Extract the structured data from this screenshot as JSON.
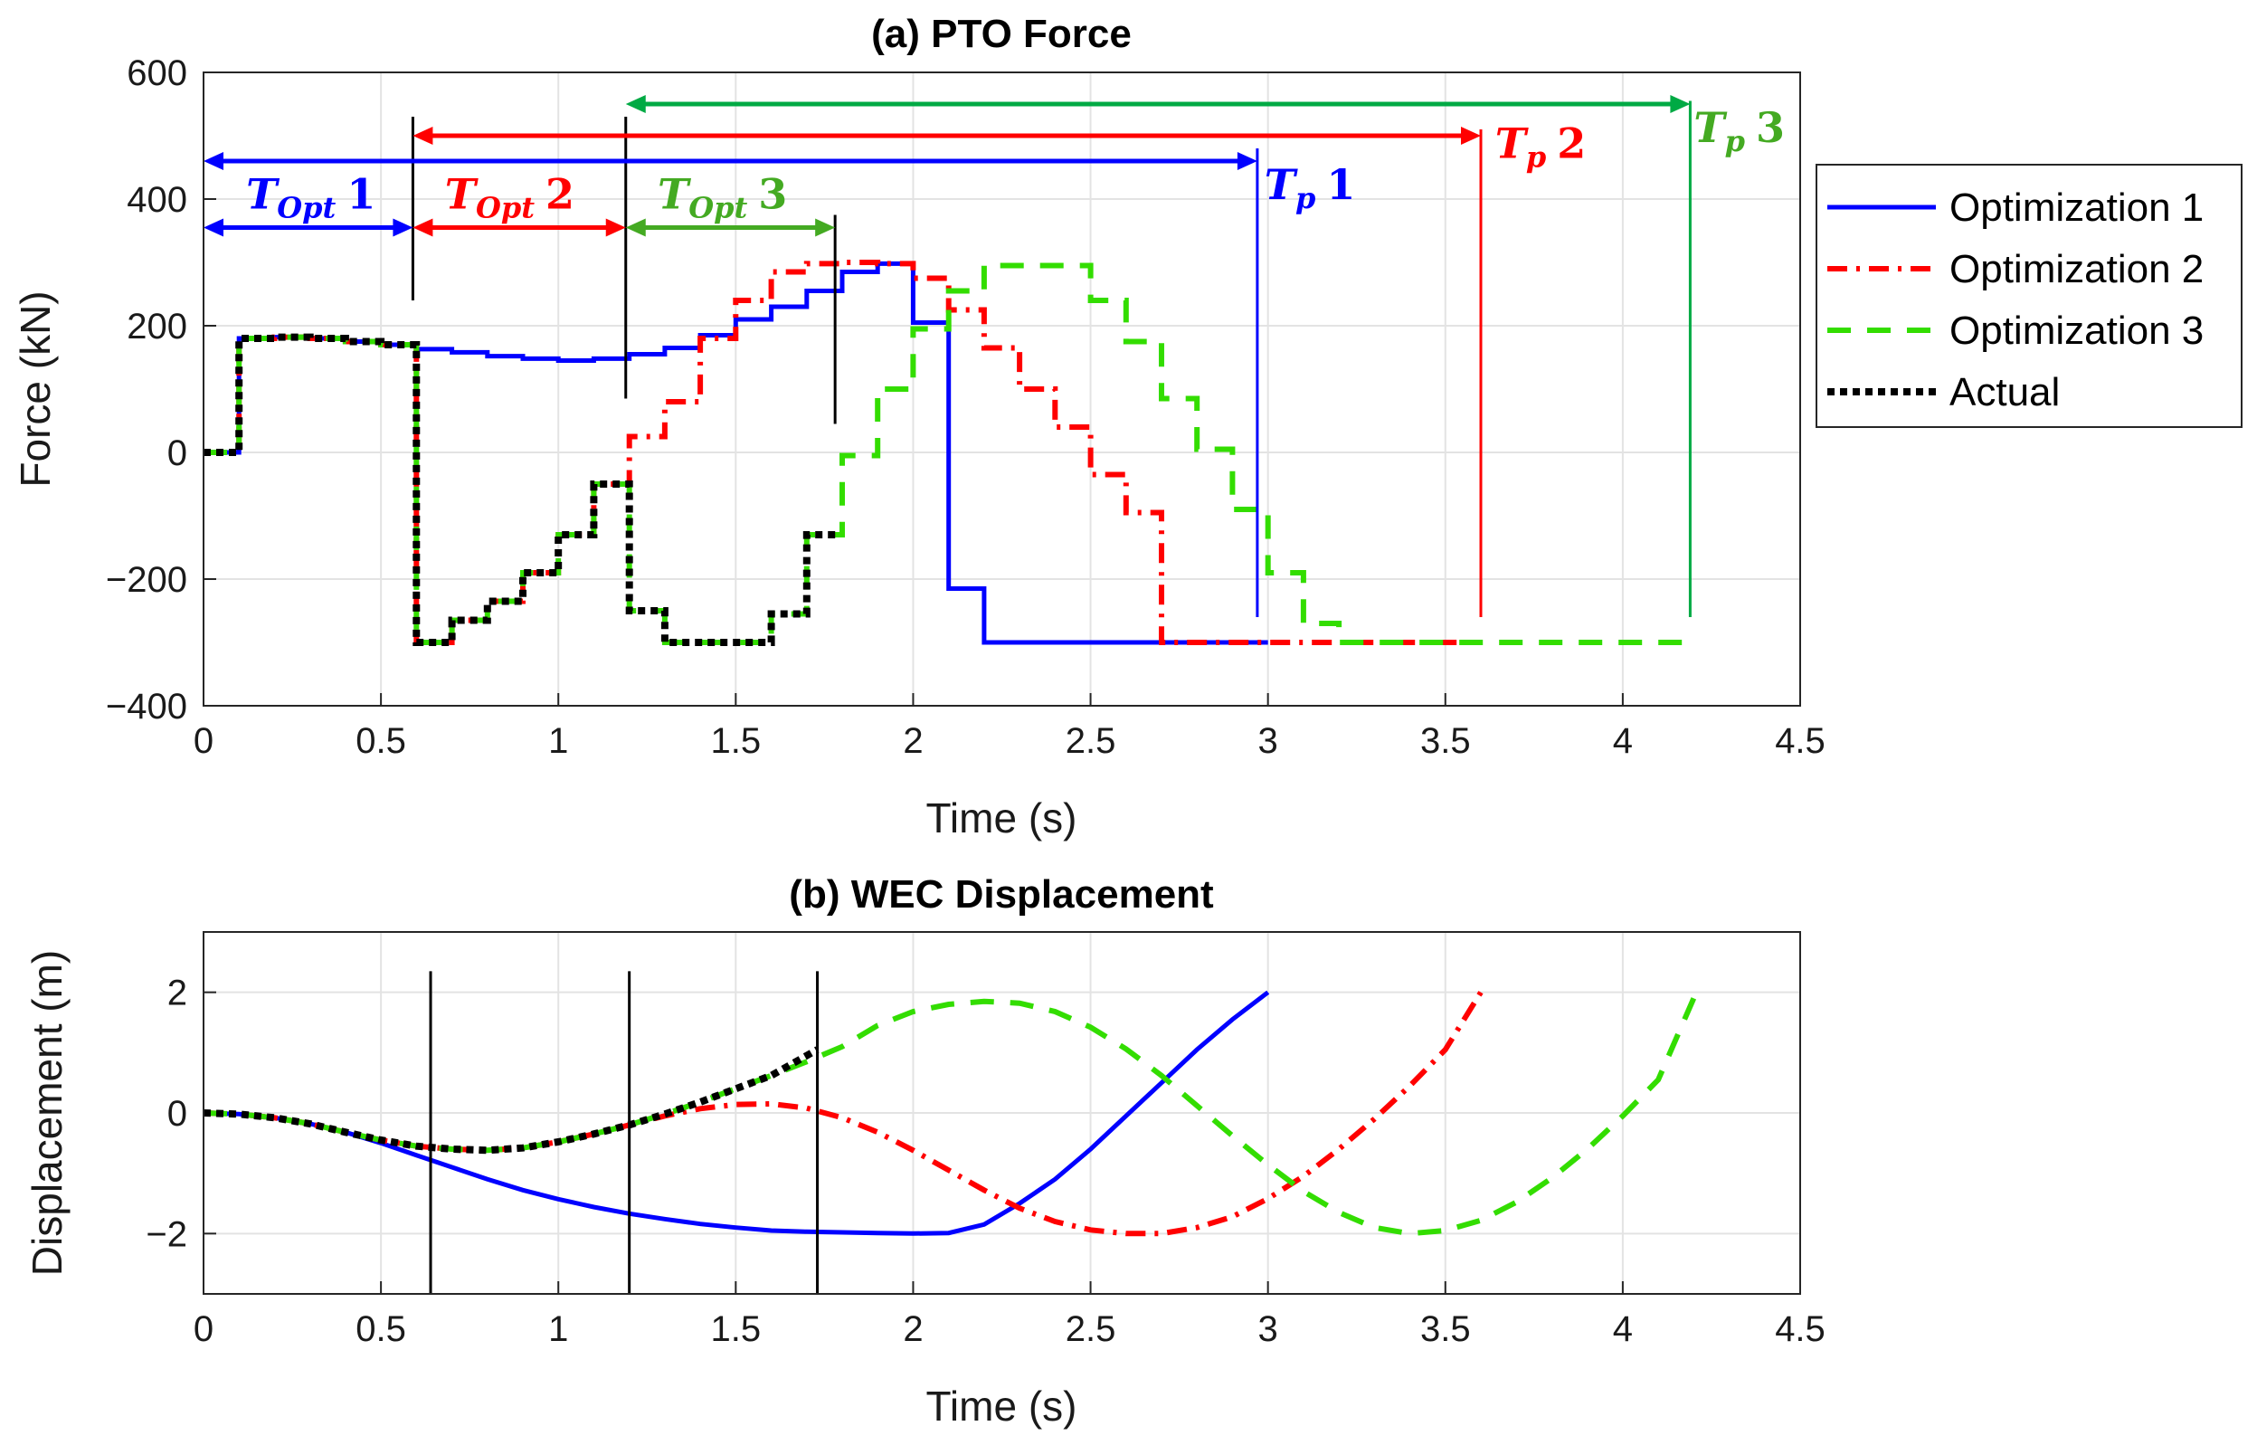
{
  "colors": {
    "opt1": "#0000ff",
    "opt2": "#ff0000",
    "opt3": "#33dd00",
    "actual": "#000000",
    "tp3": "#00aa44",
    "topt3": "#44aa22"
  },
  "chart_data": [
    {
      "id": "force",
      "type": "line",
      "title": "(a) PTO Force",
      "xlabel": "Time (s)",
      "ylabel": "Force (kN)",
      "xlim": [
        0,
        4.5
      ],
      "ylim": [
        -400,
        600
      ],
      "xticks": [
        0,
        0.5,
        1,
        1.5,
        2,
        2.5,
        3,
        3.5,
        4,
        4.5
      ],
      "xtick_labels": [
        "0",
        "0.5",
        "1",
        "1.5",
        "2",
        "2.5",
        "3",
        "3.5",
        "4",
        "4.5"
      ],
      "yticks": [
        -400,
        -200,
        0,
        200,
        400,
        600
      ],
      "ytick_labels": [
        "−400",
        "−200",
        "0",
        "200",
        "400",
        "600"
      ],
      "grid": true,
      "legend_position": "outside-right",
      "legend": [
        "Optimization 1",
        "Optimization 2",
        "Optimization 3",
        "Actual"
      ],
      "series": [
        {
          "name": "Optimization 1",
          "color_key": "opt1",
          "style": "solid",
          "x": [
            0,
            0.1,
            0.1,
            0.2,
            0.2,
            0.3,
            0.3,
            0.4,
            0.4,
            0.5,
            0.5,
            0.6,
            0.6,
            0.7,
            0.7,
            0.8,
            0.8,
            0.9,
            0.9,
            1.0,
            1.0,
            1.1,
            1.1,
            1.2,
            1.2,
            1.3,
            1.3,
            1.4,
            1.4,
            1.5,
            1.5,
            1.6,
            1.6,
            1.7,
            1.7,
            1.8,
            1.8,
            1.9,
            1.9,
            2.0,
            2.0,
            2.1,
            2.1,
            2.2,
            2.2,
            3.0
          ],
          "y": [
            0,
            0,
            180,
            180,
            182,
            182,
            180,
            180,
            175,
            175,
            170,
            170,
            163,
            163,
            158,
            158,
            152,
            152,
            148,
            148,
            145,
            145,
            148,
            148,
            155,
            155,
            165,
            165,
            185,
            185,
            210,
            210,
            230,
            230,
            255,
            255,
            285,
            285,
            298,
            298,
            205,
            205,
            -215,
            -215,
            -300,
            -300
          ]
        },
        {
          "name": "Optimization 2",
          "color_key": "opt2",
          "style": "dashdot",
          "x": [
            0,
            0.1,
            0.1,
            0.2,
            0.2,
            0.3,
            0.3,
            0.4,
            0.4,
            0.5,
            0.5,
            0.6,
            0.6,
            0.7,
            0.7,
            0.8,
            0.8,
            0.9,
            0.9,
            1.0,
            1.0,
            1.1,
            1.1,
            1.2,
            1.2,
            1.3,
            1.3,
            1.4,
            1.4,
            1.5,
            1.5,
            1.6,
            1.6,
            1.7,
            1.7,
            1.8,
            1.8,
            1.9,
            1.9,
            2.0,
            2.0,
            2.1,
            2.1,
            2.2,
            2.2,
            2.3,
            2.3,
            2.4,
            2.4,
            2.5,
            2.5,
            2.6,
            2.6,
            2.7,
            2.7,
            3.6
          ],
          "y": [
            0,
            0,
            180,
            180,
            182,
            182,
            180,
            180,
            175,
            175,
            170,
            170,
            -300,
            -300,
            -265,
            -265,
            -235,
            -235,
            -190,
            -190,
            -130,
            -130,
            -50,
            -50,
            25,
            25,
            80,
            80,
            180,
            180,
            240,
            240,
            285,
            285,
            298,
            298,
            300,
            300,
            298,
            298,
            275,
            275,
            225,
            225,
            165,
            165,
            100,
            100,
            40,
            40,
            -35,
            -35,
            -95,
            -95,
            -300,
            -300
          ]
        },
        {
          "name": "Optimization 3",
          "color_key": "opt3",
          "style": "dashed",
          "x": [
            0,
            0.1,
            0.1,
            0.2,
            0.2,
            0.3,
            0.3,
            0.4,
            0.4,
            0.5,
            0.5,
            0.6,
            0.6,
            0.7,
            0.7,
            0.8,
            0.8,
            0.9,
            0.9,
            1.0,
            1.0,
            1.1,
            1.1,
            1.2,
            1.2,
            1.3,
            1.3,
            1.6,
            1.6,
            1.7,
            1.7,
            1.8,
            1.8,
            1.9,
            1.9,
            2.0,
            2.0,
            2.1,
            2.1,
            2.2,
            2.2,
            2.5,
            2.5,
            2.6,
            2.6,
            2.7,
            2.7,
            2.8,
            2.8,
            2.9,
            2.9,
            3.0,
            3.0,
            3.1,
            3.1,
            3.2,
            3.2,
            4.2
          ],
          "y": [
            0,
            0,
            180,
            180,
            182,
            182,
            180,
            180,
            175,
            175,
            170,
            170,
            -300,
            -300,
            -265,
            -265,
            -235,
            -235,
            -190,
            -190,
            -130,
            -130,
            -50,
            -50,
            -250,
            -250,
            -300,
            -300,
            -255,
            -255,
            -130,
            -130,
            -5,
            -5,
            100,
            100,
            195,
            195,
            255,
            255,
            295,
            295,
            240,
            240,
            175,
            175,
            85,
            85,
            5,
            5,
            -90,
            -90,
            -190,
            -190,
            -270,
            -270,
            -300,
            -300
          ]
        },
        {
          "name": "Actual",
          "color_key": "actual",
          "style": "dotted",
          "x": [
            0,
            0.1,
            0.1,
            0.2,
            0.2,
            0.3,
            0.3,
            0.4,
            0.4,
            0.5,
            0.5,
            0.6,
            0.6,
            0.7,
            0.7,
            0.8,
            0.8,
            0.9,
            0.9,
            1.0,
            1.0,
            1.1,
            1.1,
            1.2,
            1.2,
            1.3,
            1.3,
            1.6,
            1.6,
            1.7,
            1.7,
            1.78
          ],
          "y": [
            0,
            0,
            180,
            180,
            182,
            182,
            180,
            180,
            175,
            175,
            170,
            170,
            -300,
            -300,
            -265,
            -265,
            -235,
            -235,
            -190,
            -190,
            -130,
            -130,
            -50,
            -50,
            -250,
            -250,
            -300,
            -300,
            -255,
            -255,
            -130,
            -130
          ]
        }
      ],
      "annotations": {
        "vertical_lines": [
          {
            "x": 0.59,
            "y_from": 240,
            "y_to": 530,
            "color_key": "actual"
          },
          {
            "x": 1.19,
            "y_from": 85,
            "y_to": 530,
            "color_key": "actual"
          },
          {
            "x": 1.78,
            "y_from": 45,
            "y_to": 375,
            "color_key": "actual"
          },
          {
            "x": 2.97,
            "y_from": -260,
            "y_to": 480,
            "color_key": "opt1"
          },
          {
            "x": 3.6,
            "y_from": -260,
            "y_to": 510,
            "color_key": "opt2"
          },
          {
            "x": 4.19,
            "y_from": -260,
            "y_to": 555,
            "color_key": "tp3"
          }
        ],
        "arrows": [
          {
            "x0": 0.0,
            "x1": 2.97,
            "y": 460,
            "color_key": "opt1"
          },
          {
            "x0": 0.59,
            "x1": 3.6,
            "y": 500,
            "color_key": "opt2"
          },
          {
            "x0": 1.19,
            "x1": 4.19,
            "y": 550,
            "color_key": "tp3"
          },
          {
            "x0": 0.0,
            "x1": 0.59,
            "y": 355,
            "color_key": "opt1"
          },
          {
            "x0": 0.59,
            "x1": 1.19,
            "y": 355,
            "color_key": "opt2"
          },
          {
            "x0": 1.19,
            "x1": 1.78,
            "y": 355,
            "color_key": "topt3"
          }
        ],
        "labels": [
          {
            "main": "T",
            "sub": "Opt",
            "num": "1",
            "x": 0.12,
            "y": 385,
            "color_key": "opt1"
          },
          {
            "main": "T",
            "sub": "Opt",
            "num": "2",
            "x": 0.68,
            "y": 385,
            "color_key": "opt2"
          },
          {
            "main": "T",
            "sub": "Opt",
            "num": "3",
            "x": 1.28,
            "y": 385,
            "color_key": "topt3"
          },
          {
            "main": "T",
            "sub": "p",
            "num": "1",
            "x": 2.99,
            "y": 400,
            "color_key": "opt1"
          },
          {
            "main": "T",
            "sub": "p",
            "num": "2",
            "x": 3.64,
            "y": 465,
            "color_key": "opt2"
          },
          {
            "main": "T",
            "sub": "p",
            "num": "3",
            "x": 4.2,
            "y": 490,
            "color_key": "topt3"
          }
        ]
      }
    },
    {
      "id": "disp",
      "type": "line",
      "title": "(b) WEC Displacement",
      "xlabel": "Time (s)",
      "ylabel": "Displacement (m)",
      "xlim": [
        0,
        4.5
      ],
      "ylim": [
        -3,
        3
      ],
      "xticks": [
        0,
        0.5,
        1,
        1.5,
        2,
        2.5,
        3,
        3.5,
        4,
        4.5
      ],
      "xtick_labels": [
        "0",
        "0.5",
        "1",
        "1.5",
        "2",
        "2.5",
        "3",
        "3.5",
        "4",
        "4.5"
      ],
      "yticks": [
        -2,
        0,
        2
      ],
      "ytick_labels": [
        "−2",
        "0",
        "2"
      ],
      "grid": true,
      "series": [
        {
          "name": "Optimization 1",
          "color_key": "opt1",
          "style": "solid",
          "x": [
            0,
            0.1,
            0.2,
            0.3,
            0.4,
            0.5,
            0.6,
            0.7,
            0.8,
            0.9,
            1.0,
            1.1,
            1.2,
            1.3,
            1.4,
            1.5,
            1.6,
            1.7,
            1.8,
            1.9,
            2.0,
            2.1,
            2.2,
            2.3,
            2.4,
            2.5,
            2.6,
            2.7,
            2.8,
            2.9,
            3.0
          ],
          "y": [
            0,
            -0.02,
            -0.08,
            -0.18,
            -0.32,
            -0.5,
            -0.7,
            -0.9,
            -1.1,
            -1.28,
            -1.43,
            -1.56,
            -1.67,
            -1.76,
            -1.84,
            -1.9,
            -1.95,
            -1.97,
            -1.98,
            -1.99,
            -2.0,
            -1.99,
            -1.85,
            -1.5,
            -1.1,
            -0.6,
            -0.05,
            0.5,
            1.05,
            1.55,
            2.0
          ]
        },
        {
          "name": "Optimization 2",
          "color_key": "opt2",
          "style": "dashdot",
          "x": [
            0,
            0.1,
            0.2,
            0.3,
            0.4,
            0.5,
            0.6,
            0.7,
            0.8,
            0.9,
            1.0,
            1.1,
            1.2,
            1.3,
            1.4,
            1.5,
            1.6,
            1.7,
            1.8,
            1.9,
            2.0,
            2.1,
            2.2,
            2.3,
            2.4,
            2.5,
            2.6,
            2.7,
            2.8,
            2.9,
            3.0,
            3.1,
            3.2,
            3.3,
            3.4,
            3.5,
            3.6
          ],
          "y": [
            0,
            -0.02,
            -0.08,
            -0.18,
            -0.32,
            -0.45,
            -0.55,
            -0.6,
            -0.62,
            -0.58,
            -0.48,
            -0.35,
            -0.2,
            -0.05,
            0.07,
            0.14,
            0.15,
            0.08,
            -0.08,
            -0.32,
            -0.62,
            -0.95,
            -1.28,
            -1.58,
            -1.8,
            -1.94,
            -2.0,
            -2.0,
            -1.9,
            -1.72,
            -1.42,
            -1.05,
            -0.6,
            -0.1,
            0.45,
            1.05,
            2.0
          ]
        },
        {
          "name": "Optimization 3",
          "color_key": "opt3",
          "style": "dashed",
          "x": [
            0,
            0.1,
            0.2,
            0.3,
            0.4,
            0.5,
            0.6,
            0.7,
            0.8,
            0.9,
            1.0,
            1.1,
            1.2,
            1.3,
            1.4,
            1.5,
            1.6,
            1.7,
            1.8,
            1.9,
            2.0,
            2.1,
            2.2,
            2.3,
            2.4,
            2.5,
            2.6,
            2.7,
            2.8,
            2.9,
            3.0,
            3.1,
            3.2,
            3.3,
            3.4,
            3.5,
            3.6,
            3.7,
            3.8,
            3.9,
            4.0,
            4.1,
            4.2
          ],
          "y": [
            0,
            -0.02,
            -0.08,
            -0.18,
            -0.32,
            -0.45,
            -0.55,
            -0.6,
            -0.62,
            -0.58,
            -0.48,
            -0.35,
            -0.2,
            -0.02,
            0.18,
            0.4,
            0.62,
            0.85,
            1.1,
            1.45,
            1.68,
            1.8,
            1.85,
            1.82,
            1.68,
            1.42,
            1.06,
            0.62,
            0.12,
            -0.38,
            -0.86,
            -1.3,
            -1.65,
            -1.9,
            -2.0,
            -1.95,
            -1.78,
            -1.48,
            -1.08,
            -0.6,
            -0.05,
            0.55,
            1.9
          ]
        },
        {
          "name": "Actual",
          "color_key": "actual",
          "style": "dotted",
          "x": [
            0,
            0.1,
            0.2,
            0.3,
            0.4,
            0.5,
            0.6,
            0.7,
            0.8,
            0.9,
            1.0,
            1.1,
            1.2,
            1.3,
            1.4,
            1.5,
            1.6,
            1.73
          ],
          "y": [
            0,
            -0.02,
            -0.08,
            -0.18,
            -0.32,
            -0.45,
            -0.55,
            -0.6,
            -0.62,
            -0.58,
            -0.48,
            -0.35,
            -0.2,
            -0.02,
            0.18,
            0.4,
            0.62,
            1.05
          ]
        }
      ],
      "annotations": {
        "vertical_lines": [
          {
            "x": 0.64,
            "y_from": -3,
            "y_to": 2.35,
            "color_key": "actual"
          },
          {
            "x": 1.2,
            "y_from": -3,
            "y_to": 2.35,
            "color_key": "actual"
          },
          {
            "x": 1.73,
            "y_from": -3,
            "y_to": 2.35,
            "color_key": "actual"
          }
        ]
      }
    }
  ]
}
